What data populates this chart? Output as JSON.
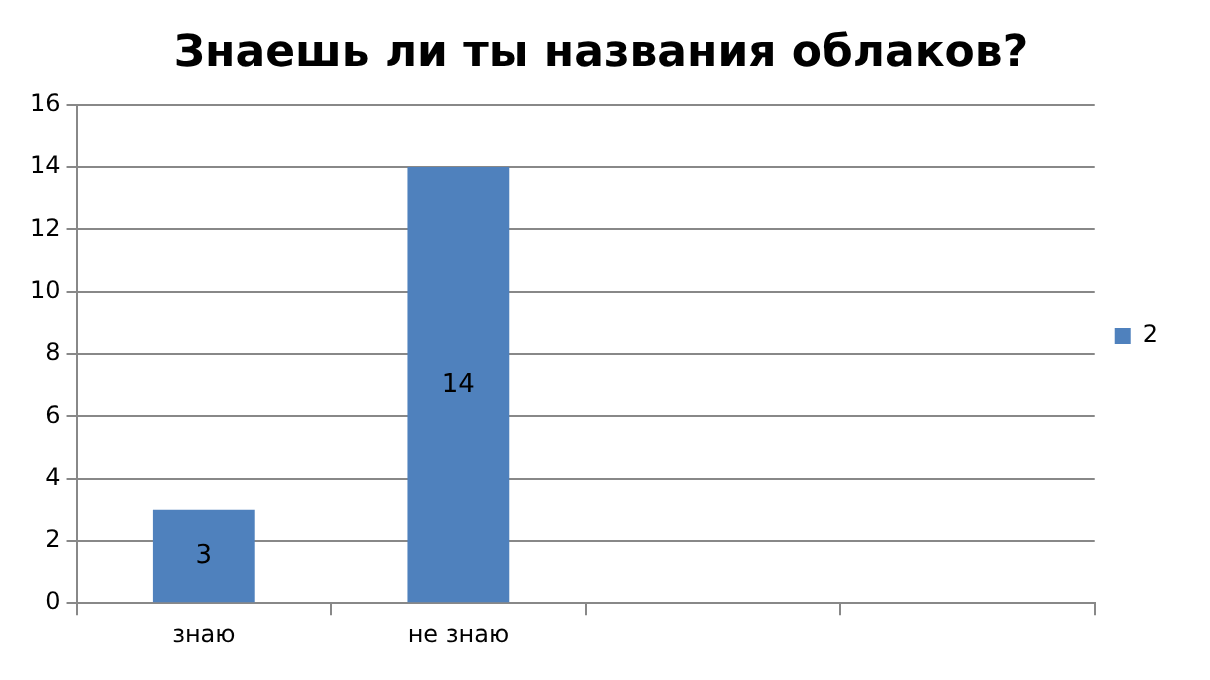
{
  "chart_data": {
    "type": "bar",
    "title": "Знаешь ли ты названия облаков?",
    "categories": [
      "знаю",
      "не знаю",
      null,
      null
    ],
    "series": [
      {
        "name": "2",
        "color": "#4f81bd",
        "values": [
          3,
          14,
          null,
          null
        ]
      }
    ],
    "ylim": [
      0,
      16
    ],
    "yticks": [
      0,
      2,
      4,
      6,
      8,
      10,
      12,
      14,
      16
    ],
    "grid": "y",
    "legend": "right",
    "data_labels": true
  }
}
